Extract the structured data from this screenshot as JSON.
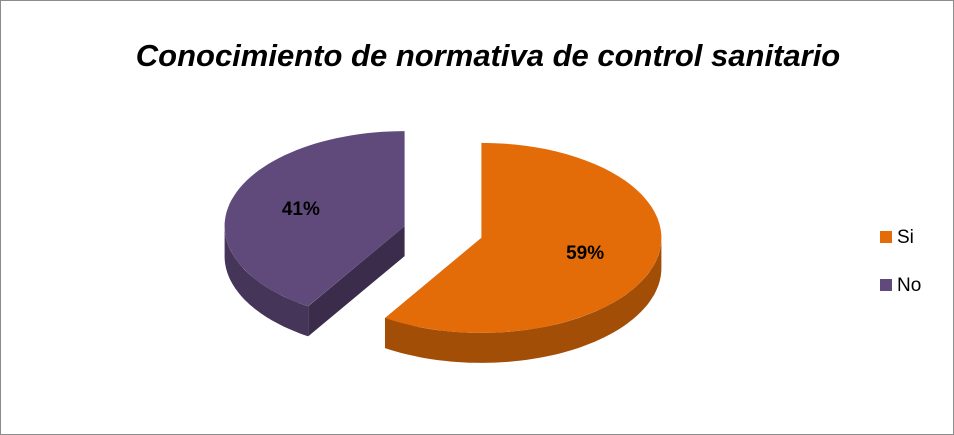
{
  "chart_data": {
    "type": "pie",
    "title": "Conocimiento de normativa de control sanitario",
    "categories": [
      "Si",
      "No"
    ],
    "values": [
      59,
      41
    ],
    "value_labels": [
      "59%",
      "41%"
    ],
    "colors": [
      "#e36c09",
      "#604a7b"
    ],
    "legend": "right"
  }
}
